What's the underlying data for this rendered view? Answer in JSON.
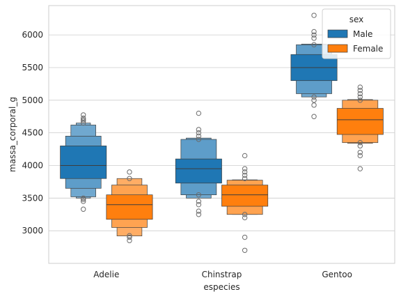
{
  "chart_data": {
    "type": "boxen",
    "xlabel": "especies",
    "ylabel": "massa_corporal_g",
    "categories": [
      "Adelie",
      "Chinstrap",
      "Gentoo"
    ],
    "ylim": [
      2500,
      6450
    ],
    "yticks": [
      3000,
      3500,
      4000,
      4500,
      5000,
      5500,
      6000
    ],
    "grid": true,
    "legend": {
      "title": "sex",
      "placement": "top-right"
    },
    "colors": {
      "Male": "#1f77b4",
      "Female": "#ff7f0e"
    },
    "series": [
      {
        "name": "Male",
        "groups": [
          {
            "category": "Adelie",
            "median": 4000,
            "levels": [
              [
                3800,
                4300
              ],
              [
                3650,
                4450
              ],
              [
                3520,
                4620
              ],
              [
                3500,
                4650
              ]
            ],
            "outliers": [
              3330,
              3450,
              3480,
              3500,
              4650,
              4680,
              4700,
              4725,
              4775
            ]
          },
          {
            "category": "Chinstrap",
            "median": 3950,
            "levels": [
              [
                3730,
                4100
              ],
              [
                3550,
                4400
              ],
              [
                3500,
                4420
              ]
            ],
            "outliers": [
              3250,
              3300,
              3400,
              3450,
              3550,
              4400,
              4450,
              4500,
              4550,
              4800
            ]
          },
          {
            "category": "Gentoo",
            "median": 5500,
            "levels": [
              [
                5300,
                5700
              ],
              [
                5100,
                5850
              ],
              [
                5050,
                5860
              ]
            ],
            "outliers": [
              4750,
              4925,
              5000,
              5050,
              5850,
              5950,
              6000,
              6050,
              6300
            ]
          }
        ]
      },
      {
        "name": "Female",
        "groups": [
          {
            "category": "Adelie",
            "median": 3400,
            "levels": [
              [
                3175,
                3550
              ],
              [
                3050,
                3700
              ],
              [
                2920,
                3800
              ]
            ],
            "outliers": [
              2850,
              2900,
              2925,
              3800,
              3900
            ]
          },
          {
            "category": "Chinstrap",
            "median": 3550,
            "levels": [
              [
                3375,
                3700
              ],
              [
                3250,
                3775
              ],
              [
                3250,
                3780
              ]
            ],
            "outliers": [
              2700,
              2900,
              3200,
              3250,
              3800,
              3850,
              3900,
              3950,
              4150
            ]
          },
          {
            "category": "Gentoo",
            "median": 4700,
            "levels": [
              [
                4475,
                4875
              ],
              [
                4350,
                5000
              ],
              [
                4340,
                5010
              ]
            ],
            "outliers": [
              3950,
              4150,
              4200,
              4300,
              4350,
              5000,
              5050,
              5100,
              5150,
              5200
            ]
          }
        ]
      }
    ]
  }
}
